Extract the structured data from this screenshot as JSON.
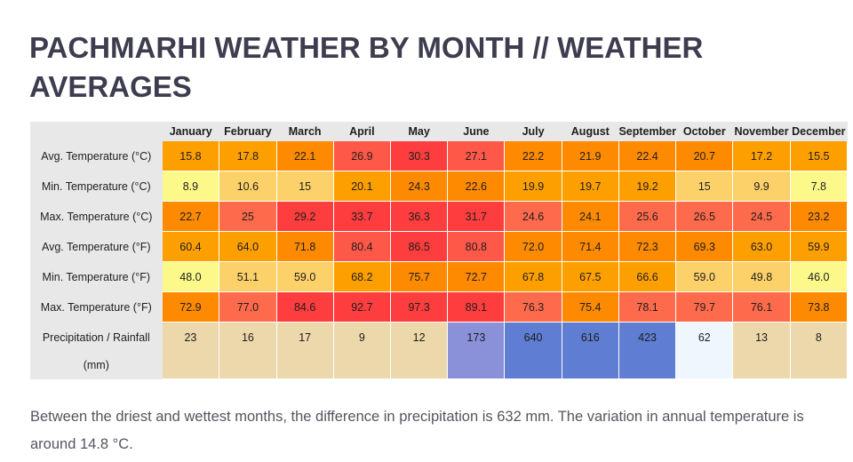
{
  "title": "PACHMARHI WEATHER BY MONTH // WEATHER AVERAGES",
  "months": [
    "January",
    "February",
    "March",
    "April",
    "May",
    "June",
    "July",
    "August",
    "September",
    "October",
    "November",
    "December"
  ],
  "rows": [
    {
      "label": "Avg. Temperature (°C)",
      "values": [
        "15.8",
        "17.8",
        "22.1",
        "26.9",
        "30.3",
        "27.1",
        "22.2",
        "21.9",
        "22.4",
        "20.7",
        "17.2",
        "15.5"
      ],
      "colors": [
        "#fe9f00",
        "#fe9f00",
        "#fd8a00",
        "#fe5848",
        "#fe3e3e",
        "#fe5848",
        "#fd8a00",
        "#fd8a00",
        "#fd8a00",
        "#fd8a00",
        "#fe9f00",
        "#fe9f00"
      ]
    },
    {
      "label": "Min. Temperature (°C)",
      "values": [
        "8.9",
        "10.6",
        "15",
        "20.1",
        "24.3",
        "22.6",
        "19.9",
        "19.7",
        "19.2",
        "15",
        "9.9",
        "7.8"
      ],
      "colors": [
        "#fcf88a",
        "#fdd169",
        "#fdd169",
        "#fe9f00",
        "#fd8a00",
        "#fd8a00",
        "#fe9f00",
        "#fe9f00",
        "#fe9f00",
        "#fdd169",
        "#fdd169",
        "#fcf88a"
      ]
    },
    {
      "label": "Max. Temperature (°C)",
      "values": [
        "22.7",
        "25",
        "29.2",
        "33.7",
        "36.3",
        "31.7",
        "24.6",
        "24.1",
        "25.6",
        "26.5",
        "24.5",
        "23.2"
      ],
      "colors": [
        "#fd8a00",
        "#fe6b4c",
        "#fe3e3e",
        "#fe3e3e",
        "#fe3e3e",
        "#fe3e3e",
        "#fe6b4c",
        "#fd8a00",
        "#fe6b4c",
        "#fe6b4c",
        "#fe6b4c",
        "#fd8a00"
      ]
    },
    {
      "label": "Avg. Temperature (°F)",
      "values": [
        "60.4",
        "64.0",
        "71.8",
        "80.4",
        "86.5",
        "80.8",
        "72.0",
        "71.4",
        "72.3",
        "69.3",
        "63.0",
        "59.9"
      ],
      "colors": [
        "#fe9f00",
        "#fe9f00",
        "#fd8a00",
        "#fe5848",
        "#fe3e3e",
        "#fe5848",
        "#fd8a00",
        "#fd8a00",
        "#fd8a00",
        "#fd8a00",
        "#fe9f00",
        "#fe9f00"
      ]
    },
    {
      "label": "Min. Temperature (°F)",
      "values": [
        "48.0",
        "51.1",
        "59.0",
        "68.2",
        "75.7",
        "72.7",
        "67.8",
        "67.5",
        "66.6",
        "59.0",
        "49.8",
        "46.0"
      ],
      "colors": [
        "#fcf88a",
        "#fdd169",
        "#fdd169",
        "#fe9f00",
        "#fd8a00",
        "#fd8a00",
        "#fe9f00",
        "#fe9f00",
        "#fe9f00",
        "#fdd169",
        "#fdd169",
        "#fcf88a"
      ]
    },
    {
      "label": "Max. Temperature (°F)",
      "values": [
        "72.9",
        "77.0",
        "84.6",
        "92.7",
        "97.3",
        "89.1",
        "76.3",
        "75.4",
        "78.1",
        "79.7",
        "76.1",
        "73.8"
      ],
      "colors": [
        "#fd8a00",
        "#fe6b4c",
        "#fe3e3e",
        "#fe3e3e",
        "#fe3e3e",
        "#fe3e3e",
        "#fe6b4c",
        "#fd8a00",
        "#fe6b4c",
        "#fe6b4c",
        "#fe6b4c",
        "#fd8a00"
      ]
    },
    {
      "label": "Precipitation / Rainfall (mm)",
      "values": [
        "23",
        "16",
        "17",
        "9",
        "12",
        "173",
        "640",
        "616",
        "423",
        "62",
        "13",
        "8"
      ],
      "colors": [
        "#ecd8ab",
        "#ecd8ab",
        "#ecd8ab",
        "#ecd8ab",
        "#ecd8ab",
        "#8a91d9",
        "#5f7dd2",
        "#5f7dd2",
        "#5f7dd2",
        "#f0f6fe",
        "#ecd8ab",
        "#ecd8ab"
      ]
    }
  ],
  "footer": "Between the driest and wettest months, the difference in precipitation is 632 mm. The variation in annual temperature is around 14.8 °C."
}
